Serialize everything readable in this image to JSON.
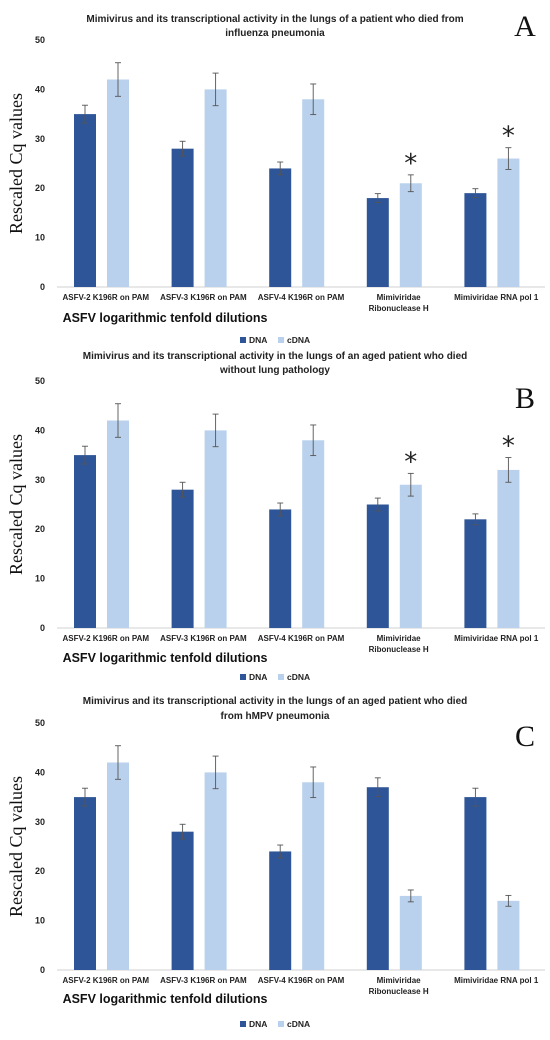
{
  "series_colors": {
    "DNA": "#2e5597",
    "cDNA": "#b9d1ec"
  },
  "chart_data": [
    {
      "type": "bar",
      "panel": "A",
      "title_lines": [
        "Mimivirus and its transcriptional activity in the lungs of a patient who died from",
        "influenza pneumonia"
      ],
      "ylabel": "Rescaled Cq values",
      "xlabel": "ASFV logarithmic tenfold dilutions",
      "ylim": [
        0,
        50
      ],
      "yticks": [
        "0",
        "10",
        "20",
        "30",
        "40",
        "50"
      ],
      "categories": [
        [
          "ASFV-2 K196R on PAM"
        ],
        [
          "ASFV-3 K196R on PAM"
        ],
        [
          "ASFV-4 K196R on PAM"
        ],
        [
          "Mimiviridae",
          "Ribonuclease H"
        ],
        [
          "Mimiviridae RNA pol 1"
        ]
      ],
      "series": [
        {
          "name": "DNA",
          "values": [
            35,
            28,
            24,
            18,
            19
          ],
          "errors": [
            1.8,
            1.5,
            1.3,
            0.9,
            0.9
          ]
        },
        {
          "name": "cDNA",
          "values": [
            42,
            40,
            38,
            21,
            26
          ],
          "errors": [
            3.4,
            3.3,
            3.1,
            1.7,
            2.2
          ]
        }
      ],
      "significance": [
        3,
        4
      ],
      "significance_marker": "*",
      "legend": [
        "DNA",
        "cDNA"
      ],
      "legend_position": "bottom",
      "grid": false
    },
    {
      "type": "bar",
      "panel": "B",
      "title_lines": [
        "Mimivirus and its transcriptional activity in the lungs of an aged patient who died",
        "without lung pathology"
      ],
      "ylabel": "Rescaled Cq values",
      "xlabel": "ASFV logarithmic tenfold dilutions",
      "ylim": [
        0,
        50
      ],
      "yticks": [
        "0",
        "10",
        "20",
        "30",
        "40",
        "50"
      ],
      "categories": [
        [
          "ASFV-2 K196R on PAM"
        ],
        [
          "ASFV-3 K196R on PAM"
        ],
        [
          "ASFV-4 K196R on PAM"
        ],
        [
          "Mimiviridae",
          "Ribonuclease H"
        ],
        [
          "Mimiviridae RNA pol 1"
        ]
      ],
      "series": [
        {
          "name": "DNA",
          "values": [
            35,
            28,
            24,
            25,
            22
          ],
          "errors": [
            1.8,
            1.5,
            1.3,
            1.3,
            1.1
          ]
        },
        {
          "name": "cDNA",
          "values": [
            42,
            40,
            38,
            29,
            32
          ],
          "errors": [
            3.4,
            3.3,
            3.1,
            2.3,
            2.5
          ]
        }
      ],
      "significance": [
        3,
        4
      ],
      "significance_marker": "*",
      "legend": [
        "DNA",
        "cDNA"
      ],
      "legend_position": "bottom",
      "grid": false
    },
    {
      "type": "bar",
      "panel": "C",
      "title_lines": [
        "Mimivirus and its transcriptional activity in the lungs of an aged patient who died",
        "from hMPV pneumonia"
      ],
      "ylabel": "Rescaled Cq values",
      "xlabel": "ASFV logarithmic tenfold dilutions",
      "ylim": [
        0,
        50
      ],
      "yticks": [
        "0",
        "10",
        "20",
        "30",
        "40",
        "50"
      ],
      "categories": [
        [
          "ASFV-2 K196R on PAM"
        ],
        [
          "ASFV-3 K196R on PAM"
        ],
        [
          "ASFV-4 K196R on PAM"
        ],
        [
          "Mimiviridae",
          "Ribonuclease H"
        ],
        [
          "Mimiviridae RNA pol 1"
        ]
      ],
      "series": [
        {
          "name": "DNA",
          "values": [
            35,
            28,
            24,
            37,
            35
          ],
          "errors": [
            1.8,
            1.5,
            1.3,
            1.9,
            1.8
          ]
        },
        {
          "name": "cDNA",
          "values": [
            42,
            40,
            38,
            15,
            14
          ],
          "errors": [
            3.4,
            3.3,
            3.1,
            1.2,
            1.1
          ]
        }
      ],
      "significance": [],
      "significance_marker": "*",
      "legend": [
        "DNA",
        "cDNA"
      ],
      "legend_position": "bottom",
      "grid": false
    }
  ]
}
